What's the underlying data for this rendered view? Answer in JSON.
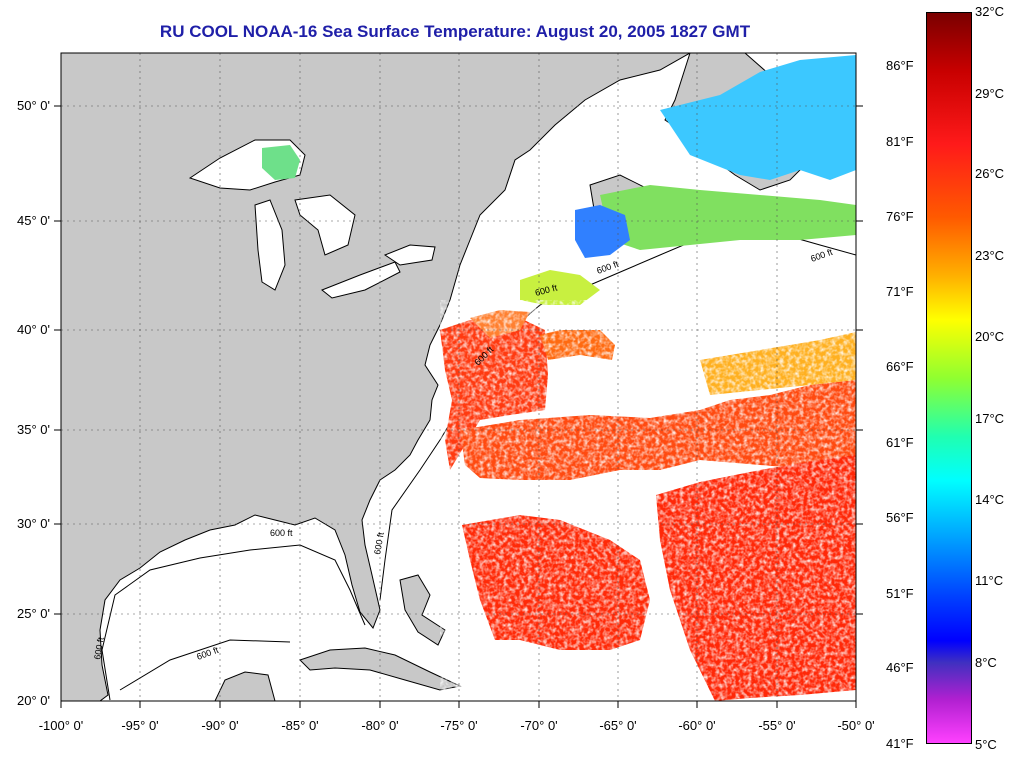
{
  "title": "RU COOL  NOAA-16  Sea Surface Temperature:  August 20, 2005 1827 GMT",
  "map": {
    "lat_labels": [
      "50° 0'",
      "45° 0'",
      "40° 0'",
      "35° 0'",
      "30° 0'",
      "25° 0'",
      "20° 0'"
    ],
    "lon_labels": [
      "-100° 0'",
      "-95° 0'",
      "-90° 0'",
      "-85° 0'",
      "-80° 0'",
      "-75° 0'",
      "-70° 0'",
      "-65° 0'",
      "-60° 0'",
      "-55° 0'",
      "-50° 0'"
    ],
    "contour_label": "600 ft",
    "colors": {
      "land": "#c8c8c8",
      "cloud": "#ffffff",
      "coast": "#000000"
    }
  },
  "colorbar": {
    "fahrenheit": [
      "86°F",
      "81°F",
      "76°F",
      "71°F",
      "66°F",
      "61°F",
      "56°F",
      "51°F",
      "46°F",
      "41°F"
    ],
    "celsius": [
      "32°C",
      "29°C",
      "26°C",
      "23°C",
      "20°C",
      "17°C",
      "14°C",
      "11°C",
      "8°C",
      "5°C"
    ]
  }
}
